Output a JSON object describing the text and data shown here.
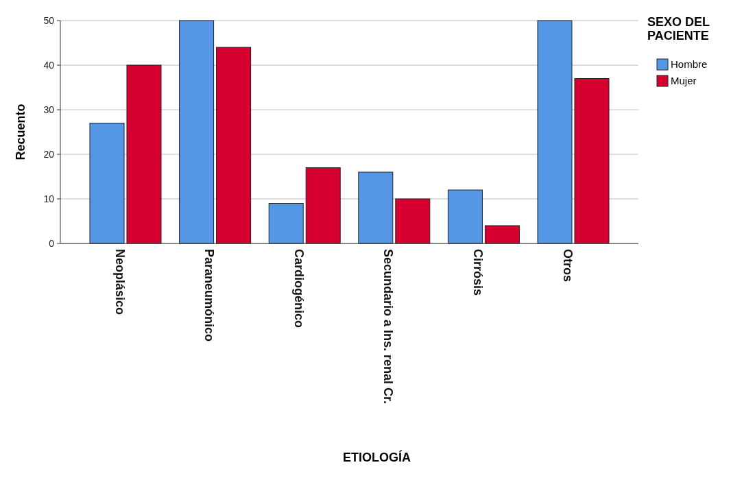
{
  "chart_data": {
    "type": "bar",
    "xlabel": "ETIOLOGÍA",
    "ylabel": "Recuento",
    "legend_title": "SEXO DEL PACIENTE",
    "categories": [
      "Neoplásico",
      "Paraneumónico",
      "Cardiogénico",
      "Secundario a Ins. renal Cr.",
      "Cirrósis",
      "Otros"
    ],
    "series": [
      {
        "name": "Hombre",
        "color": "#5597e6",
        "values": [
          27,
          50,
          9,
          16,
          12,
          50
        ]
      },
      {
        "name": "Mujer",
        "color": "#d5002f",
        "values": [
          40,
          44,
          17,
          10,
          4,
          37
        ]
      }
    ],
    "ylim": [
      0,
      50
    ],
    "yticks": [
      0,
      10,
      20,
      30,
      40,
      50
    ],
    "grid": "y",
    "legend": "top right"
  }
}
